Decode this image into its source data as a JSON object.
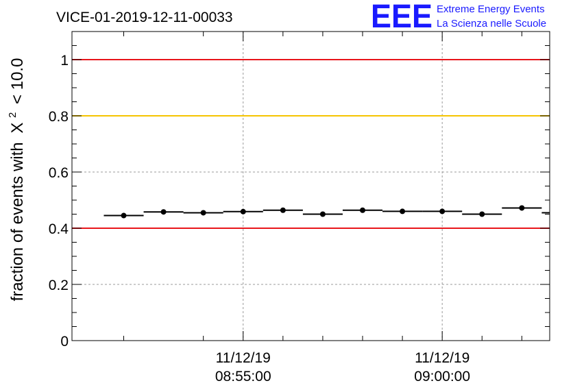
{
  "header": {
    "run_id": "VICE-01-2019-12-11-00033",
    "logo_text": "EEE",
    "logo_line1": "Extreme Energy Events",
    "logo_line2": "La Scienza nelle Scuole"
  },
  "colors": {
    "logo": "#1a1aff",
    "threshold_red": "#e8141a",
    "threshold_yellow": "#f5c400",
    "marker": "#000000",
    "grid": "#999999"
  },
  "chart_data": {
    "type": "scatter",
    "title": "VICE-01-2019-12-11-00033",
    "ylabel": "fraction of events with",
    "ylabel_symbol": "X",
    "ylabel_superscript": "2",
    "ylabel_suffix": "< 10.0",
    "ylim": [
      0,
      1.1
    ],
    "xlim": [
      -4.3,
      7.7
    ],
    "x_unit": "minutes relative to 08:55:00",
    "grid": true,
    "y_ticks": [
      {
        "value": 0,
        "label": "0"
      },
      {
        "value": 0.2,
        "label": "0.2"
      },
      {
        "value": 0.4,
        "label": "0.4"
      },
      {
        "value": 0.6,
        "label": "0.6"
      },
      {
        "value": 0.8,
        "label": "0.8"
      },
      {
        "value": 1,
        "label": "1"
      }
    ],
    "x_ticks": [
      {
        "value": 0,
        "date": "11/12/19",
        "time": "08:55:00"
      },
      {
        "value": 5,
        "date": "11/12/19",
        "time": "09:00:00"
      }
    ],
    "x_minor_ticks": [
      -3,
      -1,
      1,
      2,
      3,
      4,
      6,
      7
    ],
    "reference_lines": [
      {
        "y": 1.0,
        "color": "#e8141a"
      },
      {
        "y": 0.8,
        "color": "#f5c400"
      },
      {
        "y": 0.4,
        "color": "#e8141a"
      }
    ],
    "bin_width": 1,
    "points": [
      {
        "x": -3.0,
        "y": 0.445
      },
      {
        "x": -2.0,
        "y": 0.458
      },
      {
        "x": -1.0,
        "y": 0.455
      },
      {
        "x": 0.0,
        "y": 0.459
      },
      {
        "x": 1.0,
        "y": 0.464
      },
      {
        "x": 2.0,
        "y": 0.45
      },
      {
        "x": 3.0,
        "y": 0.464
      },
      {
        "x": 4.0,
        "y": 0.46
      },
      {
        "x": 5.0,
        "y": 0.46
      },
      {
        "x": 6.0,
        "y": 0.45
      },
      {
        "x": 7.0,
        "y": 0.472
      },
      {
        "x": 8.0,
        "y": 0.455
      }
    ]
  }
}
